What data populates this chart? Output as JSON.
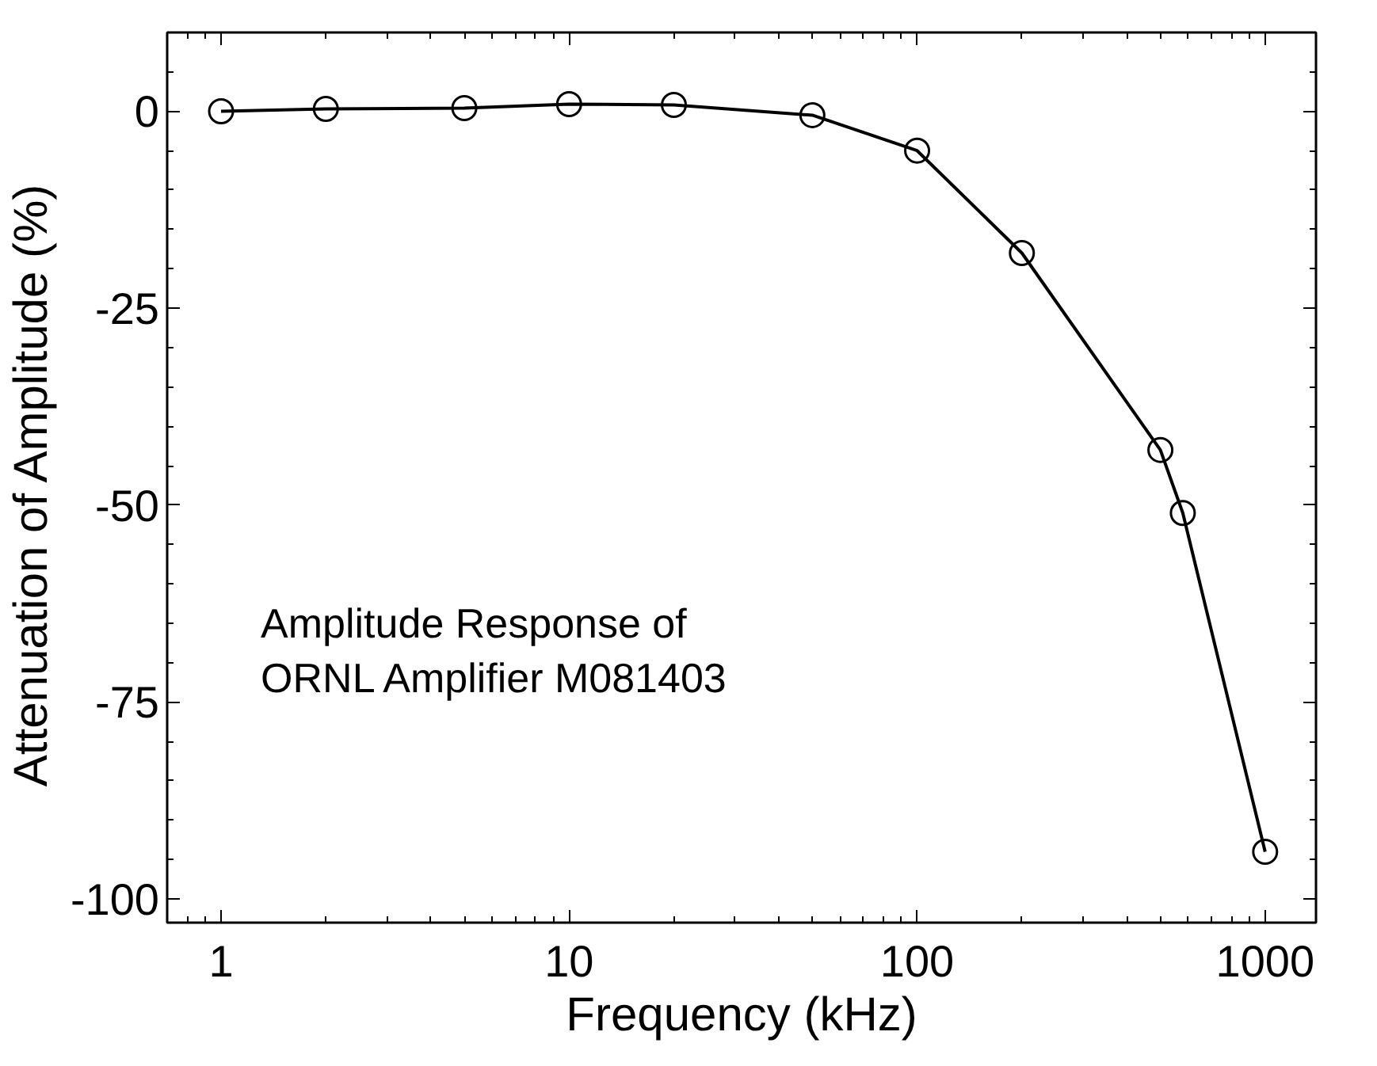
{
  "chart_data": {
    "type": "line",
    "xlabel": "Frequency (kHz)",
    "ylabel": "Attenuation of Amplitude  (%)",
    "x": [
      1,
      2,
      5,
      10,
      20,
      50,
      100,
      200,
      500,
      580,
      1000
    ],
    "series": [
      {
        "color": "#000000",
        "values": [
          0,
          0.3,
          0.4,
          0.9,
          0.8,
          -0.5,
          -5,
          -18,
          -43,
          -51,
          -94
        ]
      }
    ],
    "log": "x",
    "xlim": [
      0.7,
      1400
    ],
    "xticks": [
      1,
      10,
      100,
      1000
    ],
    "ylim": [
      -103,
      10
    ],
    "yticks": [
      0,
      -25,
      -50,
      -75,
      -100
    ],
    "grid": false,
    "marker": "circle",
    "line_style": "solid",
    "annotations": [
      "Amplitude Response of\nORNL Amplifier M081403"
    ]
  }
}
